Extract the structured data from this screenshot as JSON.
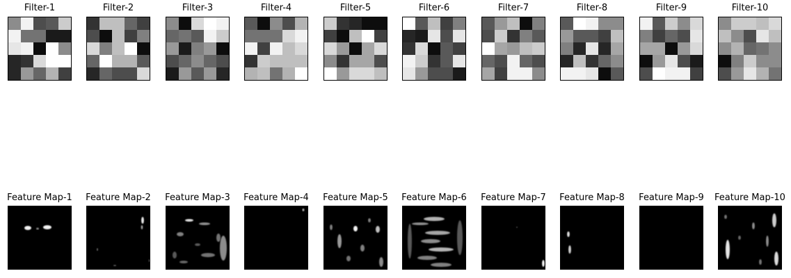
{
  "chart_data": [
    {
      "type": "heatmap",
      "title": "Filter-1",
      "colormap": "gray",
      "values": [
        [
          0.55,
          0.95,
          0.3,
          0.35,
          0.8
        ],
        [
          0.95,
          0.45,
          0.45,
          0.1,
          0.1
        ],
        [
          0.9,
          0.95,
          0.05,
          1.0,
          0.55
        ],
        [
          0.15,
          0.2,
          0.85,
          1.0,
          1.0
        ],
        [
          0.15,
          0.6,
          0.4,
          0.7,
          0.25
        ]
      ]
    },
    {
      "type": "heatmap",
      "title": "Filter-2",
      "colormap": "gray",
      "values": [
        [
          0.2,
          0.75,
          0.75,
          0.4,
          0.25
        ],
        [
          0.3,
          0.05,
          0.75,
          0.25,
          0.5
        ],
        [
          0.85,
          0.5,
          0.75,
          1.0,
          0.05
        ],
        [
          0.4,
          1.0,
          0.7,
          0.7,
          0.35
        ],
        [
          0.15,
          0.4,
          0.3,
          0.3,
          0.85
        ]
      ]
    },
    {
      "type": "heatmap",
      "title": "Filter-3",
      "colormap": "gray",
      "values": [
        [
          0.55,
          0.05,
          0.85,
          1.0,
          0.95
        ],
        [
          0.4,
          0.45,
          0.35,
          0.95,
          0.8
        ],
        [
          0.6,
          0.1,
          0.5,
          0.6,
          0.05
        ],
        [
          0.3,
          0.4,
          0.55,
          0.4,
          0.3
        ],
        [
          0.1,
          0.6,
          0.35,
          0.6,
          0.15
        ]
      ]
    },
    {
      "type": "heatmap",
      "title": "Filter-4",
      "colormap": "gray",
      "values": [
        [
          0.35,
          0.05,
          0.55,
          0.3,
          0.7
        ],
        [
          0.45,
          0.45,
          0.45,
          0.85,
          0.95
        ],
        [
          0.95,
          0.25,
          0.95,
          0.75,
          0.85
        ],
        [
          0.2,
          0.8,
          0.75,
          0.75,
          0.75
        ],
        [
          0.7,
          0.75,
          0.45,
          0.7,
          1.0
        ]
      ]
    },
    {
      "type": "heatmap",
      "title": "Filter-5",
      "colormap": "gray",
      "values": [
        [
          0.8,
          0.2,
          0.15,
          0.05,
          0.05
        ],
        [
          0.25,
          0.05,
          0.75,
          1.0,
          0.25
        ],
        [
          0.85,
          0.6,
          0.05,
          0.65,
          0.85
        ],
        [
          0.55,
          0.2,
          0.65,
          0.65,
          0.3
        ],
        [
          1.0,
          0.6,
          0.85,
          0.85,
          0.75
        ]
      ]
    },
    {
      "type": "heatmap",
      "title": "Filter-6",
      "colormap": "gray",
      "values": [
        [
          1.0,
          0.35,
          0.75,
          0.25,
          0.5
        ],
        [
          0.15,
          0.1,
          0.9,
          0.3,
          0.9
        ],
        [
          0.2,
          0.85,
          0.05,
          0.35,
          0.25
        ],
        [
          0.95,
          0.8,
          0.2,
          0.35,
          0.9
        ],
        [
          0.9,
          0.6,
          0.3,
          0.3,
          0.1
        ]
      ]
    },
    {
      "type": "heatmap",
      "title": "Filter-7",
      "colormap": "gray",
      "values": [
        [
          0.35,
          0.6,
          0.75,
          0.05,
          0.5
        ],
        [
          0.3,
          0.8,
          0.2,
          0.5,
          0.35
        ],
        [
          1.0,
          0.65,
          0.6,
          0.75,
          0.8
        ],
        [
          0.4,
          0.3,
          0.95,
          0.4,
          0.3
        ],
        [
          0.65,
          0.25,
          0.95,
          0.95,
          0.55
        ]
      ]
    },
    {
      "type": "heatmap",
      "title": "Filter-8",
      "colormap": "gray",
      "values": [
        [
          0.35,
          1.0,
          0.95,
          0.55,
          0.55
        ],
        [
          0.6,
          0.35,
          0.35,
          0.25,
          0.75
        ],
        [
          0.5,
          0.15,
          0.9,
          0.15,
          0.65
        ],
        [
          0.15,
          0.75,
          0.2,
          0.4,
          0.55
        ],
        [
          0.95,
          0.95,
          0.9,
          0.05,
          0.35
        ]
      ]
    },
    {
      "type": "heatmap",
      "title": "Filter-9",
      "colormap": "gray",
      "values": [
        [
          0.95,
          0.35,
          0.8,
          0.55,
          0.85
        ],
        [
          0.5,
          0.25,
          0.4,
          0.3,
          0.9
        ],
        [
          0.65,
          0.65,
          0.05,
          0.6,
          0.85
        ],
        [
          0.05,
          0.6,
          0.9,
          0.3,
          0.1
        ],
        [
          0.3,
          1.0,
          0.95,
          0.95,
          0.25
        ]
      ]
    },
    {
      "type": "heatmap",
      "title": "Filter-10",
      "colormap": "gray",
      "values": [
        [
          0.55,
          0.8,
          0.8,
          0.75,
          0.85
        ],
        [
          0.75,
          0.55,
          0.3,
          0.9,
          0.75
        ],
        [
          0.55,
          0.7,
          0.4,
          0.45,
          0.55
        ],
        [
          0.05,
          0.5,
          0.8,
          0.55,
          0.55
        ],
        [
          0.3,
          0.6,
          0.9,
          0.7,
          0.45
        ]
      ]
    },
    {
      "type": "heatmap",
      "title": "Feature Map-1",
      "colormap": "gray"
    },
    {
      "type": "heatmap",
      "title": "Feature Map-2",
      "colormap": "gray"
    },
    {
      "type": "heatmap",
      "title": "Feature Map-3",
      "colormap": "gray"
    },
    {
      "type": "heatmap",
      "title": "Feature Map-4",
      "colormap": "gray"
    },
    {
      "type": "heatmap",
      "title": "Feature Map-5",
      "colormap": "gray"
    },
    {
      "type": "heatmap",
      "title": "Feature Map-6",
      "colormap": "gray"
    },
    {
      "type": "heatmap",
      "title": "Feature Map-7",
      "colormap": "gray"
    },
    {
      "type": "heatmap",
      "title": "Feature Map-8",
      "colormap": "gray"
    },
    {
      "type": "heatmap",
      "title": "Feature Map-9",
      "colormap": "gray"
    },
    {
      "type": "heatmap",
      "title": "Feature Map-10",
      "colormap": "gray"
    }
  ]
}
